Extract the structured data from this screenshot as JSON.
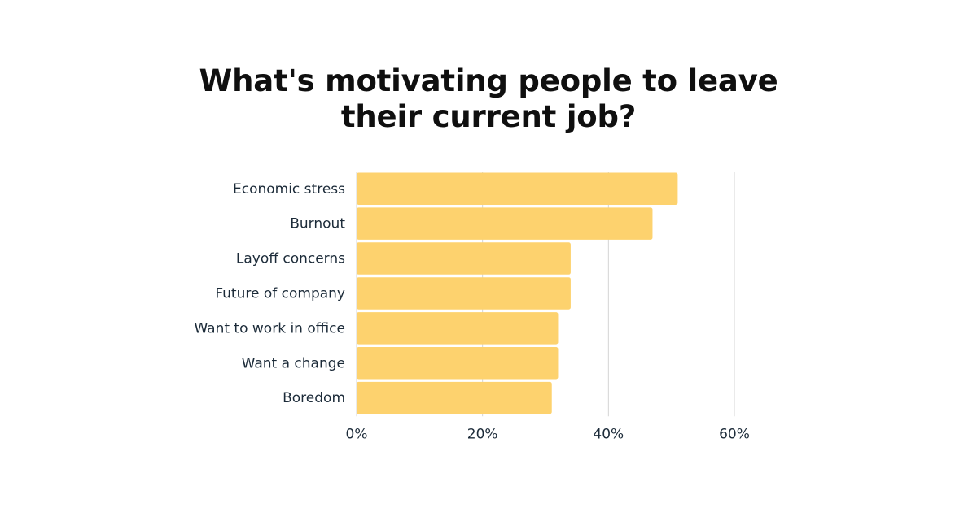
{
  "chart_data": {
    "type": "bar",
    "orientation": "horizontal",
    "title_lines": [
      "What's motivating people to leave",
      "their current job?"
    ],
    "categories": [
      "Economic stress",
      "Burnout",
      "Layoff concerns",
      "Future of company",
      "Want to work in office",
      "Want a change",
      "Boredom"
    ],
    "values": [
      51,
      47,
      34,
      34,
      32,
      32,
      31
    ],
    "value_unit": "%",
    "xlim": [
      0,
      60
    ],
    "x_ticks": [
      0,
      20,
      40,
      60
    ],
    "x_tick_labels": [
      "0%",
      "20%",
      "40%",
      "60%"
    ],
    "grid": "vertical",
    "colors": {
      "bar": "#fdd26e",
      "grid": "#d4d4d4",
      "text": "#1c2b39",
      "title": "#0f0f0f"
    }
  }
}
